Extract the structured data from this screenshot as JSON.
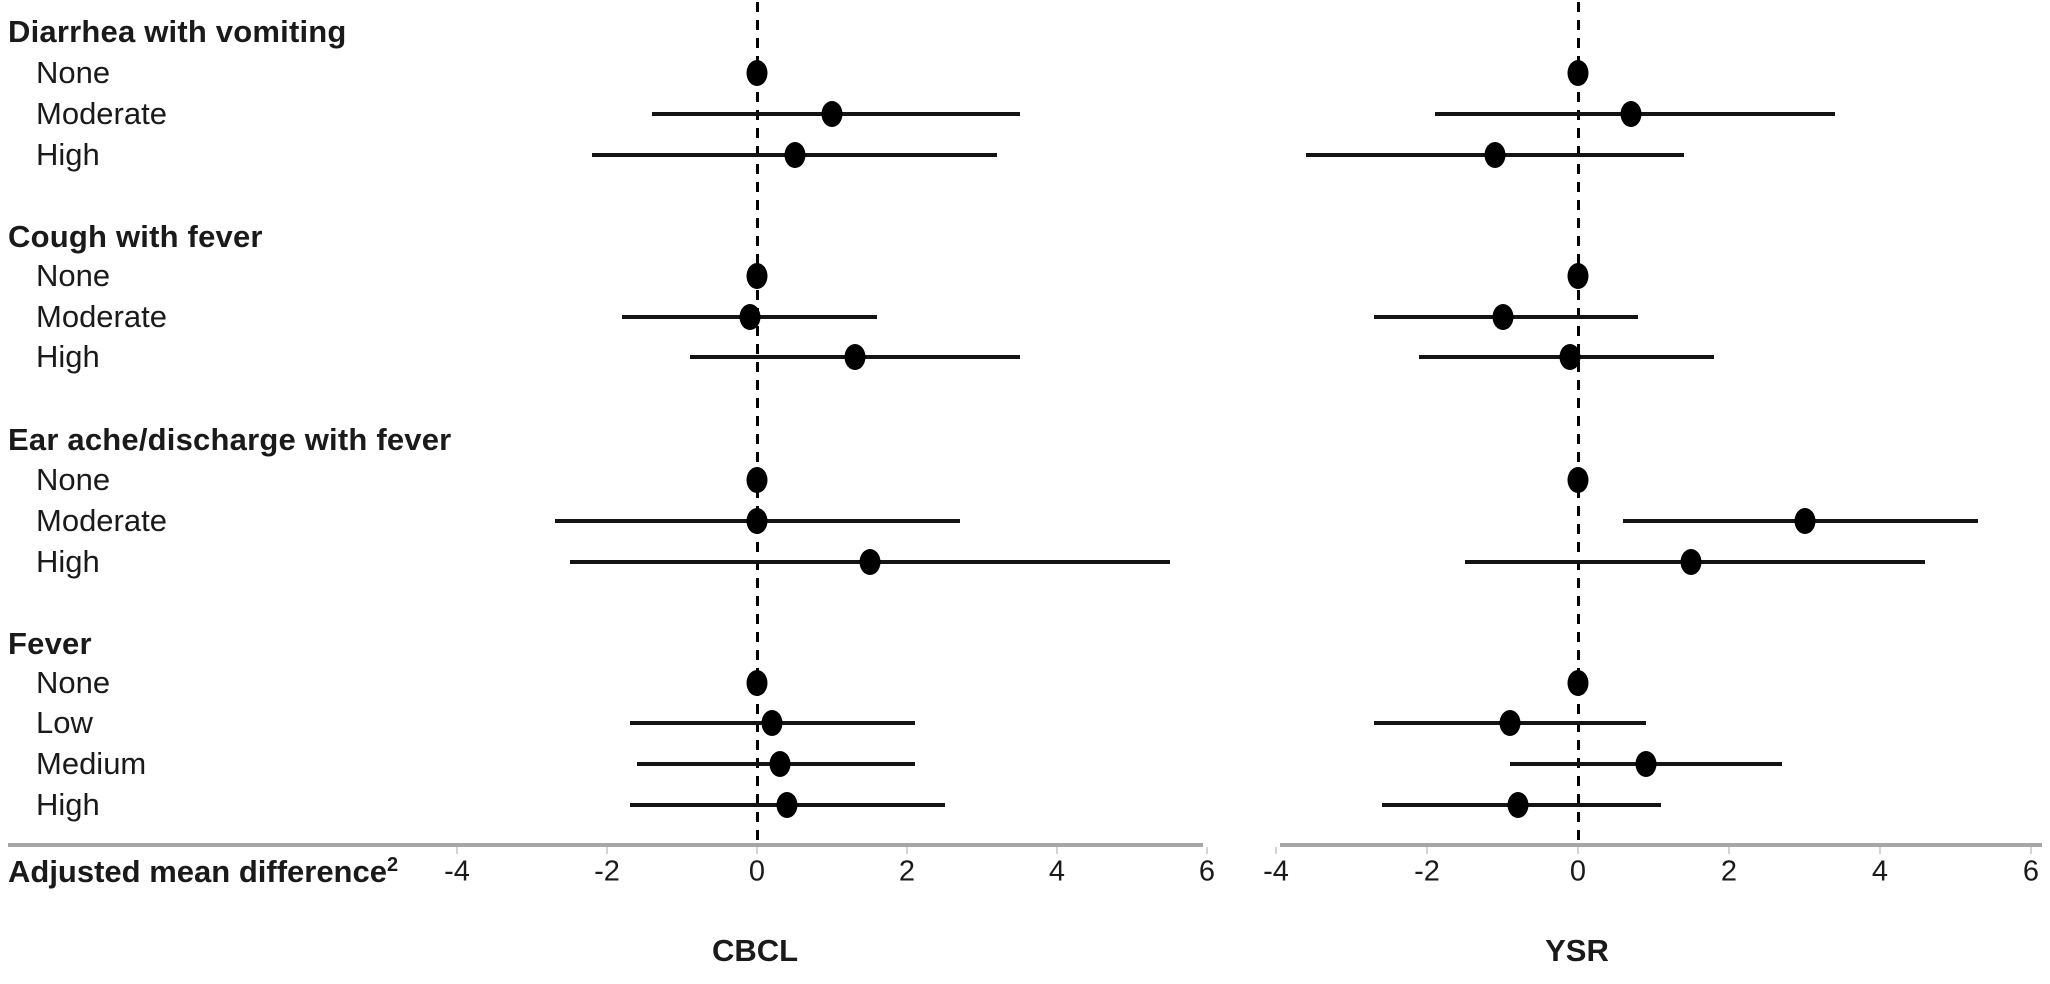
{
  "chart_data": {
    "type": "forest",
    "title": "",
    "xlabel": "Adjusted mean difference",
    "xlabel_superscript": "2",
    "x_ticks": [
      -4,
      -2,
      0,
      2,
      4,
      6
    ],
    "xlim": [
      -4.3,
      6.3
    ],
    "reference_line_x": 0,
    "grid": false,
    "legend": "none",
    "panels": [
      "CBCL",
      "YSR"
    ],
    "point_color": "#000000",
    "axis_color": "#a6a6a6",
    "groups": [
      {
        "label": "Diarrhea with vomiting",
        "rows": [
          {
            "label": "None",
            "cbcl": {
              "est": 0.0,
              "ci": null
            },
            "ysr": {
              "est": 0.0,
              "ci": null
            }
          },
          {
            "label": "Moderate",
            "cbcl": {
              "est": 1.0,
              "ci": [
                -1.4,
                3.5
              ]
            },
            "ysr": {
              "est": 0.7,
              "ci": [
                -1.9,
                3.4
              ]
            }
          },
          {
            "label": "High",
            "cbcl": {
              "est": 0.5,
              "ci": [
                -2.2,
                3.2
              ]
            },
            "ysr": {
              "est": -1.1,
              "ci": [
                -3.6,
                1.4
              ]
            }
          }
        ]
      },
      {
        "label": "Cough with fever",
        "rows": [
          {
            "label": "None",
            "cbcl": {
              "est": 0.0,
              "ci": null
            },
            "ysr": {
              "est": 0.0,
              "ci": null
            }
          },
          {
            "label": "Moderate",
            "cbcl": {
              "est": -0.1,
              "ci": [
                -1.8,
                1.6
              ]
            },
            "ysr": {
              "est": -1.0,
              "ci": [
                -2.7,
                0.8
              ]
            }
          },
          {
            "label": "High",
            "cbcl": {
              "est": 1.3,
              "ci": [
                -0.9,
                3.5
              ]
            },
            "ysr": {
              "est": -0.1,
              "ci": [
                -2.1,
                1.8
              ]
            }
          }
        ]
      },
      {
        "label": "Ear ache/discharge with fever",
        "rows": [
          {
            "label": "None",
            "cbcl": {
              "est": 0.0,
              "ci": null
            },
            "ysr": {
              "est": 0.0,
              "ci": null
            }
          },
          {
            "label": "Moderate",
            "cbcl": {
              "est": 0.0,
              "ci": [
                -2.7,
                2.7
              ]
            },
            "ysr": {
              "est": 3.0,
              "ci": [
                0.6,
                5.3
              ]
            }
          },
          {
            "label": "High",
            "cbcl": {
              "est": 1.5,
              "ci": [
                -2.5,
                5.5
              ]
            },
            "ysr": {
              "est": 1.5,
              "ci": [
                -1.5,
                4.6
              ]
            }
          }
        ]
      },
      {
        "label": "Fever",
        "rows": [
          {
            "label": "None",
            "cbcl": {
              "est": 0.0,
              "ci": null
            },
            "ysr": {
              "est": 0.0,
              "ci": null
            }
          },
          {
            "label": "Low",
            "cbcl": {
              "est": 0.2,
              "ci": [
                -1.7,
                2.1
              ]
            },
            "ysr": {
              "est": -0.9,
              "ci": [
                -2.7,
                0.9
              ]
            }
          },
          {
            "label": "Medium",
            "cbcl": {
              "est": 0.3,
              "ci": [
                -1.6,
                2.1
              ]
            },
            "ysr": {
              "est": 0.9,
              "ci": [
                -0.9,
                2.7
              ]
            }
          },
          {
            "label": "High",
            "cbcl": {
              "est": 0.4,
              "ci": [
                -1.7,
                2.5
              ]
            },
            "ysr": {
              "est": -0.8,
              "ci": [
                -2.6,
                1.1
              ]
            }
          }
        ]
      }
    ]
  }
}
